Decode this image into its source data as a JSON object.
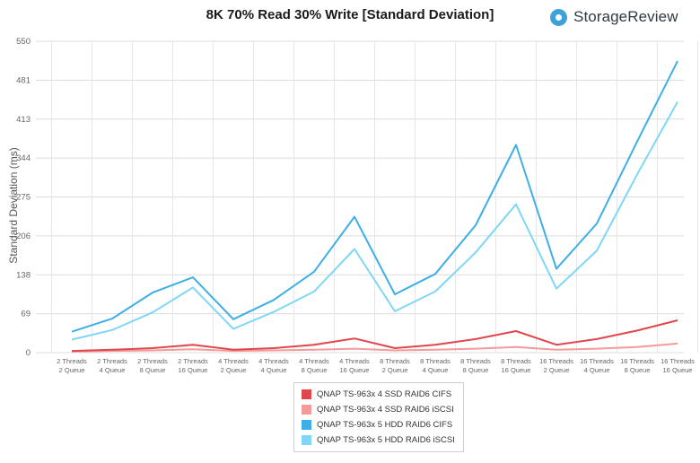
{
  "header": {
    "brand_name": "StorageReview",
    "brand_icon": "storagereview-logo-icon"
  },
  "chart_data": {
    "type": "line",
    "title": "8K 70% Read 30% Write [Standard Deviation]",
    "xlabel": "",
    "ylabel": "Standard Deviation (ms)",
    "ylim": [
      0,
      550
    ],
    "yticks": [
      "0",
      "69",
      "138",
      "206",
      "275",
      "344",
      "413",
      "481",
      "550"
    ],
    "grid": true,
    "legend_position": "bottom",
    "categories": [
      [
        "2 Threads",
        "2 Queue"
      ],
      [
        "2 Threads",
        "4 Queue"
      ],
      [
        "2 Threads",
        "8 Queue"
      ],
      [
        "2 Threads",
        "16 Queue"
      ],
      [
        "4 Threads",
        "2 Queue"
      ],
      [
        "4 Threads",
        "4 Queue"
      ],
      [
        "4 Threads",
        "8 Queue"
      ],
      [
        "4 Threads",
        "16 Queue"
      ],
      [
        "8 Threads",
        "2 Queue"
      ],
      [
        "8 Threads",
        "4 Queue"
      ],
      [
        "8 Threads",
        "8 Queue"
      ],
      [
        "8 Threads",
        "16 Queue"
      ],
      [
        "16 Threads",
        "2 Queue"
      ],
      [
        "16 Threads",
        "4 Queue"
      ],
      [
        "16 Threads",
        "8 Queue"
      ],
      [
        "16 Threads",
        "16 Queue"
      ]
    ],
    "series": [
      {
        "name": "QNAP TS-963x 4 SSD RAID6 CIFS",
        "color": "#e0474c",
        "values": [
          3,
          5,
          8,
          14,
          5,
          8,
          14,
          25,
          8,
          14,
          24,
          38,
          14,
          24,
          39,
          57
        ]
      },
      {
        "name": "QNAP TS-963x 4 SSD RAID6 iSCSI",
        "color": "#f49a9a",
        "values": [
          2,
          3,
          4,
          6,
          3,
          4,
          5,
          7,
          4,
          5,
          7,
          10,
          5,
          7,
          10,
          16
        ]
      },
      {
        "name": "QNAP TS-963x 5 HDD RAID6 CIFS",
        "color": "#3eaee6",
        "values": [
          37,
          60,
          106,
          133,
          59,
          93,
          143,
          240,
          103,
          139,
          225,
          367,
          148,
          228,
          373,
          515
        ]
      },
      {
        "name": "QNAP TS-963x 5 HDD RAID6 iSCSI",
        "color": "#7fd6f7",
        "values": [
          23,
          40,
          71,
          115,
          42,
          72,
          108,
          183,
          73,
          108,
          177,
          262,
          113,
          180,
          315,
          443
        ]
      }
    ]
  }
}
